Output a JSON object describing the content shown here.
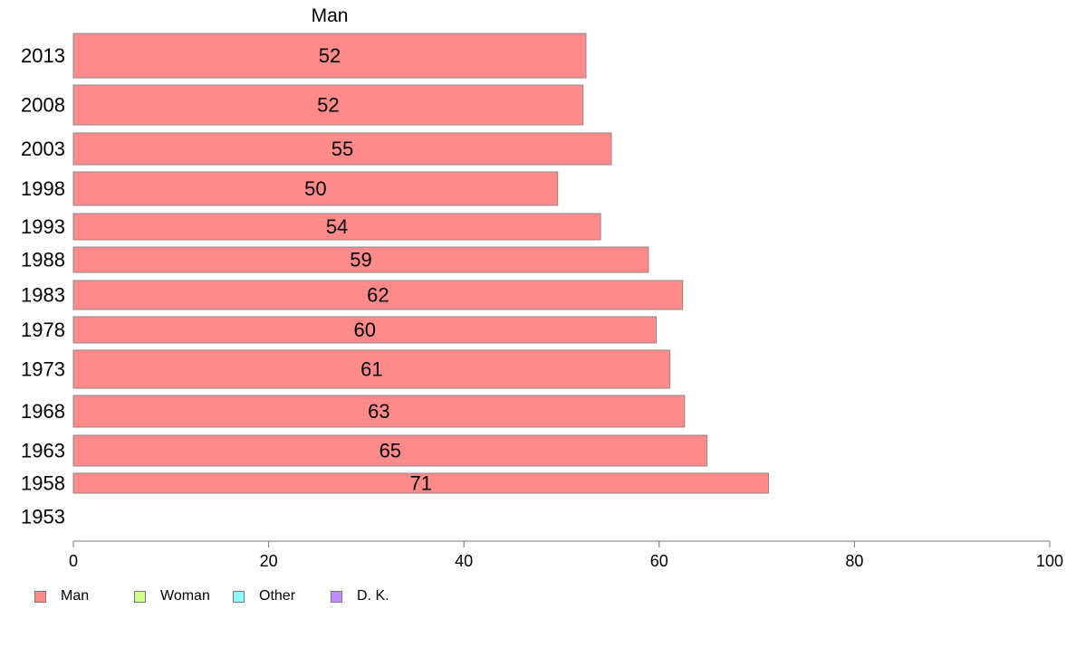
{
  "chart_data": {
    "type": "bar",
    "orientation": "horizontal",
    "series_title": "Man",
    "categories": [
      "2013",
      "2008",
      "2003",
      "1998",
      "1993",
      "1988",
      "1983",
      "1978",
      "1973",
      "1968",
      "1963",
      "1958",
      "1953"
    ],
    "series": [
      {
        "name": "Man",
        "color": "#ff8a8a",
        "values": [
          52.5,
          52.2,
          55.1,
          49.6,
          54.0,
          58.9,
          62.4,
          59.7,
          61.1,
          62.6,
          64.9,
          71.2,
          null
        ],
        "labels": [
          "52",
          "52",
          "55",
          "50",
          "54",
          "59",
          "62",
          "60",
          "61",
          "63",
          "65",
          "71",
          ""
        ]
      }
    ],
    "x_ticks": [
      "0",
      "20",
      "40",
      "60",
      "80",
      "100"
    ],
    "xlim": [
      0,
      100
    ],
    "xlabel": "",
    "ylabel": "",
    "grid": false,
    "legend_position": "bottom-left"
  },
  "legend": [
    {
      "label": "Man",
      "color": "#ff8a8a"
    },
    {
      "label": "Woman",
      "color": "#d2ff8c"
    },
    {
      "label": "Other",
      "color": "#8cfcfc"
    },
    {
      "label": "D. K.",
      "color": "#c08cff"
    }
  ]
}
